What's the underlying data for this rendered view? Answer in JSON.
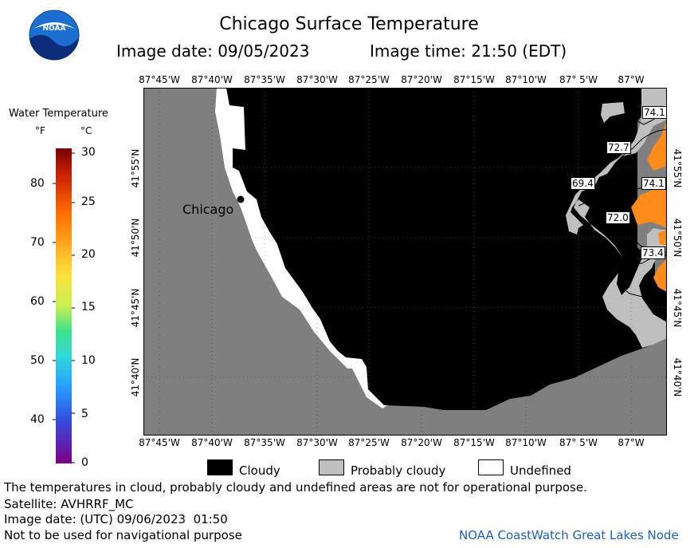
{
  "header": {
    "title": "Chicago Surface Temperature",
    "image_date": "Image date: 09/05/2023",
    "image_time": "Image time: 21:50 (EDT)",
    "logo_text": "NOAA"
  },
  "scale": {
    "title": "Water Temperature",
    "unit_f": "°F",
    "unit_c": "°C",
    "f_ticks": [
      "80",
      "70",
      "60",
      "50",
      "40"
    ],
    "c_ticks": [
      "30",
      "25",
      "20",
      "15",
      "10",
      "5",
      "0"
    ]
  },
  "map": {
    "lon_labels": [
      "87°45'W",
      "87°40'W",
      "87°35'W",
      "87°30'W",
      "87°25'W",
      "87°20'W",
      "87°15'W",
      "87°10'W",
      "87° 5'W",
      "87°W"
    ],
    "lat_labels": [
      "41°55'N",
      "41°50'N",
      "41°45'N",
      "41°40'N"
    ],
    "city_label": "Chicago",
    "temp_labels": [
      "74.1",
      "72.7",
      "69.4",
      "74.1",
      "72.0",
      "73.4"
    ],
    "colors": {
      "land": "#7f7f7f",
      "cloudy": "#000000",
      "probably_cloudy": "#bfbfbf",
      "undefined": "#ffffff",
      "warm_water": "#ff8c1a"
    }
  },
  "legend": {
    "cloudy": "Cloudy",
    "probably_cloudy": "Probably cloudy",
    "undefined": "Undefined"
  },
  "footer": {
    "disclaimer": "The temperatures in cloud, probably cloudy and undefined areas are not for operational purpose.",
    "satellite": "Satellite: AVHRRF_MC",
    "utc_date": "Image date: (UTC) 09/06/2023  01:50",
    "nav_warning": "Not to be used for navigational purpose",
    "credit": "NOAA CoastWatch Great Lakes Node"
  }
}
